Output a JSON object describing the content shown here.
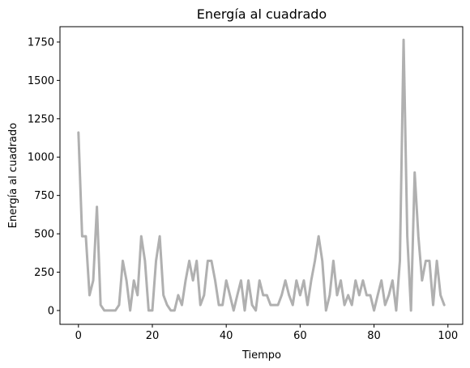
{
  "chart_data": {
    "type": "line",
    "title": "Energía al cuadrado",
    "xlabel": "Tiempo",
    "ylabel": "Energía al cuadrado",
    "xlim": [
      -5,
      104
    ],
    "ylim": [
      -90,
      1850
    ],
    "xticks": [
      0,
      20,
      40,
      60,
      80,
      100
    ],
    "yticks": [
      0,
      250,
      500,
      750,
      1000,
      1250,
      1500,
      1750
    ],
    "xtick_labels": [
      "0",
      "20",
      "40",
      "60",
      "80",
      "100"
    ],
    "ytick_labels": [
      "0",
      "250",
      "500",
      "750",
      "1000",
      "1250",
      "1500",
      "1750"
    ],
    "grid": false,
    "line_color": "#b0b0b0",
    "series": [
      {
        "x": [
          0,
          1,
          2,
          3,
          4,
          5,
          6,
          7,
          8,
          9,
          10,
          11,
          12,
          13,
          14,
          15,
          16,
          17,
          18,
          19,
          20,
          21,
          22,
          23,
          24,
          25,
          26,
          27,
          28,
          29,
          30,
          31,
          32,
          33,
          34,
          35,
          36,
          37,
          38,
          39,
          40,
          41,
          42,
          43,
          44,
          45,
          46,
          47,
          48,
          49,
          50,
          51,
          52,
          53,
          54,
          55,
          56,
          57,
          58,
          59,
          60,
          61,
          62,
          63,
          64,
          65,
          66,
          67,
          68,
          69,
          70,
          71,
          72,
          73,
          74,
          75,
          76,
          77,
          78,
          79,
          80,
          81,
          82,
          83,
          84,
          85,
          86,
          87,
          88,
          89,
          90,
          91,
          92,
          93,
          94,
          95,
          96,
          97,
          98,
          99
        ],
        "values": [
          1160,
          484,
          484,
          100,
          196,
          676,
          36,
          0,
          0,
          0,
          0,
          36,
          324,
          196,
          0,
          196,
          100,
          484,
          324,
          0,
          0,
          324,
          484,
          100,
          36,
          0,
          0,
          100,
          36,
          196,
          324,
          196,
          324,
          36,
          100,
          324,
          324,
          196,
          36,
          36,
          196,
          100,
          0,
          100,
          196,
          0,
          196,
          36,
          0,
          196,
          100,
          100,
          36,
          36,
          36,
          100,
          196,
          100,
          36,
          196,
          100,
          196,
          36,
          196,
          324,
          484,
          324,
          0,
          100,
          324,
          100,
          196,
          36,
          100,
          36,
          196,
          100,
          196,
          100,
          100,
          0,
          100,
          196,
          36,
          100,
          196,
          0,
          324,
          1764,
          484,
          0,
          900,
          484,
          196,
          324,
          324,
          36,
          324,
          100,
          36
        ]
      }
    ]
  }
}
